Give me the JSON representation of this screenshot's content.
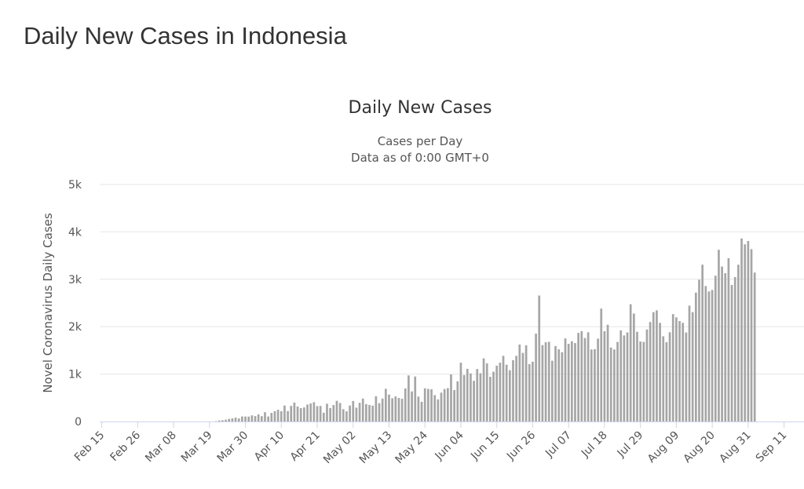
{
  "page": {
    "title": "Daily New Cases in Indonesia"
  },
  "colors": {
    "bar": "#a6a6a6",
    "grid": "#e6e6e6",
    "axis": "#ccd6eb"
  },
  "chart_data": {
    "type": "bar",
    "title": "Daily New Cases",
    "subtitle": [
      "Cases per Day",
      "Data as of 0:00 GMT+0"
    ],
    "ylabel": "Novel Coronavirus Daily Cases",
    "xlabel": "",
    "ylim": [
      0,
      5000
    ],
    "y_ticks": [
      {
        "value": 0,
        "label": "0"
      },
      {
        "value": 1000,
        "label": "1k"
      },
      {
        "value": 2000,
        "label": "2k"
      },
      {
        "value": 3000,
        "label": "3k"
      },
      {
        "value": 4000,
        "label": "4k"
      },
      {
        "value": 5000,
        "label": "5k"
      }
    ],
    "x_tick_labels": [
      {
        "index": 0,
        "label": "Feb 15"
      },
      {
        "index": 11,
        "label": "Feb 26"
      },
      {
        "index": 22,
        "label": "Mar 08"
      },
      {
        "index": 33,
        "label": "Mar 19"
      },
      {
        "index": 44,
        "label": "Mar 30"
      },
      {
        "index": 55,
        "label": "Apr 10"
      },
      {
        "index": 66,
        "label": "Apr 21"
      },
      {
        "index": 77,
        "label": "May 02"
      },
      {
        "index": 88,
        "label": "May 13"
      },
      {
        "index": 99,
        "label": "May 24"
      },
      {
        "index": 110,
        "label": "Jun 04"
      },
      {
        "index": 121,
        "label": "Jun 15"
      },
      {
        "index": 132,
        "label": "Jun 26"
      },
      {
        "index": 143,
        "label": "Jul 07"
      },
      {
        "index": 154,
        "label": "Jul 18"
      },
      {
        "index": 165,
        "label": "Jul 29"
      },
      {
        "index": 176,
        "label": "Aug 09"
      },
      {
        "index": 187,
        "label": "Aug 20"
      },
      {
        "index": 198,
        "label": "Aug 31"
      },
      {
        "index": 209,
        "label": "Sep 11"
      }
    ],
    "grid": true,
    "legend": "none",
    "values": [
      0,
      0,
      0,
      0,
      0,
      0,
      0,
      0,
      0,
      0,
      0,
      0,
      0,
      0,
      0,
      0,
      0,
      0,
      0,
      0,
      0,
      0,
      0,
      0,
      0,
      0,
      0,
      0,
      0,
      0,
      0,
      0,
      2,
      2,
      0,
      6,
      20,
      27,
      38,
      55,
      65,
      81,
      64,
      106,
      105,
      103,
      129,
      114,
      149,
      113,
      196,
      106,
      181,
      218,
      247,
      218,
      337,
      219,
      330,
      399,
      316,
      282,
      297,
      357,
      380,
      407,
      325,
      327,
      185,
      375,
      283,
      347,
      436,
      390,
      260,
      214,
      337,
      433,
      292,
      395,
      484,
      367,
      349,
      335,
      533,
      387,
      484,
      689,
      568,
      490,
      529,
      496,
      479,
      698,
      973,
      634,
      949,
      526,
      415,
      700,
      687,
      680,
      557,
      467,
      609,
      684,
      703,
      993,
      662,
      847,
      1241,
      979,
      1111,
      1014,
      857,
      1106,
      1017,
      1331,
      1226,
      943,
      1051,
      1178,
      1240,
      1385,
      1198,
      1082,
      1294,
      1385,
      1624,
      1447,
      1607,
      1209,
      1262,
      1853,
      2657,
      1611,
      1671,
      1681,
      1282,
      1591,
      1522,
      1462,
      1752,
      1639,
      1693,
      1654,
      1868,
      1906,
      1761,
      1882,
      1519,
      1525,
      1748,
      2381,
      1904,
      2040,
      1560,
      1519,
      1679,
      1922,
      1815,
      1879,
      2473,
      2277,
      1893,
      1687,
      1679,
      1942,
      2098,
      2307,
      2345,
      2081,
      1797,
      1673,
      1882,
      2266,
      2197,
      2118,
      2081,
      1877,
      2444,
      2307,
      2719,
      2990,
      3308,
      2858,
      2743,
      2775,
      3075,
      3622,
      3269,
      3128,
      3444,
      2880,
      3046,
      3307,
      3861,
      3737,
      3806,
      3636,
      3141
    ]
  }
}
